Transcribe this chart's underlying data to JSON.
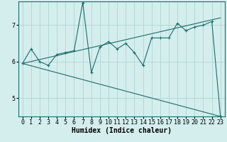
{
  "xlabel": "Humidex (Indice chaleur)",
  "background_color": "#d4eeed",
  "grid_color": "#b0d4d4",
  "line_color": "#1a6e6e",
  "marker": "+",
  "xlim": [
    -0.5,
    23.5
  ],
  "ylim": [
    4.5,
    7.65
  ],
  "yticks": [
    5,
    6,
    7
  ],
  "xticks": [
    0,
    1,
    2,
    3,
    4,
    5,
    6,
    7,
    8,
    9,
    10,
    11,
    12,
    13,
    14,
    15,
    16,
    17,
    18,
    19,
    20,
    21,
    22,
    23
  ],
  "series1_x": [
    0,
    1,
    2,
    3,
    4,
    5,
    6,
    7,
    8,
    9,
    10,
    11,
    12,
    13,
    14,
    15,
    16,
    17,
    18,
    19,
    20,
    21,
    22,
    23
  ],
  "series1_y": [
    5.95,
    6.35,
    6.0,
    5.9,
    6.2,
    6.25,
    6.3,
    7.62,
    5.7,
    6.4,
    6.55,
    6.35,
    6.5,
    6.25,
    5.9,
    6.65,
    6.65,
    6.65,
    7.05,
    6.85,
    6.95,
    7.0,
    7.1,
    4.5
  ],
  "series2_x": [
    0,
    23
  ],
  "series2_y": [
    5.95,
    4.5
  ],
  "series3_x": [
    0,
    23
  ],
  "series3_y": [
    5.95,
    7.2
  ],
  "xlabel_fontsize": 7,
  "tick_fontsize": 6
}
